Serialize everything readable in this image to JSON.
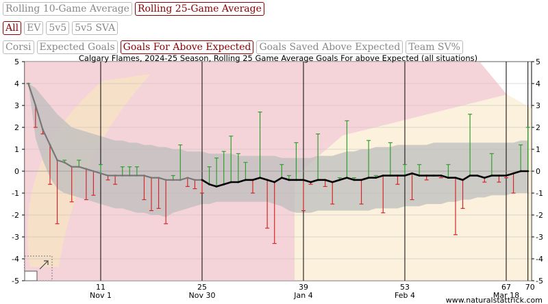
{
  "controls": {
    "window": [
      "Rolling 10-Game Average",
      "Rolling 25-Game Average"
    ],
    "window_active": 1,
    "situation": [
      "All",
      "EV",
      "5v5",
      "5v5 SVA"
    ],
    "situation_active": 0,
    "metric": [
      "Corsi",
      "Expected Goals",
      "Goals For Above Expected",
      "Goals Saved Above Expected",
      "Team SV%"
    ],
    "metric_active": 2
  },
  "watermark": "www.naturalstattrick.com",
  "colors": {
    "accent": "#8b0000",
    "positive": "#2ca02c",
    "negative": "#d62728",
    "line": "#000000",
    "band": "#bdbdbd",
    "logo_red": "#f2c6cc",
    "logo_yellow": "#f8e6c0"
  },
  "chart_data": {
    "type": "line",
    "title": "Calgary Flames, 2024-25 Season, Rolling 25 Game Average Goals For above Expected (all situations)",
    "xlabel": "",
    "ylabel": "",
    "xlim": [
      0.5,
      70.5
    ],
    "ylim": [
      -5,
      5
    ],
    "y_ticks": [
      -5,
      -4,
      -3,
      -2,
      -1,
      0,
      1,
      2,
      3,
      4,
      5
    ],
    "x_ticks": [
      {
        "game": 11,
        "date": "Nov 1"
      },
      {
        "game": 25,
        "date": "Nov 30"
      },
      {
        "game": 39,
        "date": "Jan 4"
      },
      {
        "game": 53,
        "date": "Feb 4"
      },
      {
        "game": 67,
        "date": "Mar 18"
      },
      {
        "game": 70,
        "date": ""
      }
    ],
    "grid": true,
    "games": [
      1,
      2,
      3,
      4,
      5,
      6,
      7,
      8,
      9,
      10,
      11,
      12,
      13,
      14,
      15,
      16,
      17,
      18,
      19,
      20,
      21,
      22,
      23,
      24,
      25,
      26,
      27,
      28,
      29,
      30,
      31,
      32,
      33,
      34,
      35,
      36,
      37,
      38,
      39,
      40,
      41,
      42,
      43,
      44,
      45,
      46,
      47,
      48,
      49,
      50,
      51,
      52,
      53,
      54,
      55,
      56,
      57,
      58,
      59,
      60,
      61,
      62,
      63,
      64,
      65,
      66,
      67,
      68,
      69,
      70
    ],
    "game_values": [
      4.0,
      2.0,
      1.7,
      -0.6,
      -2.4,
      0.5,
      -1.4,
      0.5,
      -1.3,
      -1.1,
      0.3,
      -0.4,
      -0.6,
      0.2,
      0.2,
      0.2,
      -1.3,
      -1.8,
      -1.7,
      -2.4,
      -0.2,
      1.2,
      -0.7,
      -0.8,
      -1.0,
      0.2,
      0.6,
      0.9,
      1.6,
      0.8,
      0.4,
      -1.0,
      2.7,
      -2.6,
      -3.3,
      0.3,
      -0.2,
      1.3,
      -1.8,
      -0.6,
      1.7,
      -0.7,
      -1.5,
      -0.3,
      2.3,
      -0.3,
      -1.5,
      1.4,
      -0.2,
      -1.9,
      1.3,
      -0.6,
      0.3,
      -1.3,
      0.3,
      -0.4,
      -0.2,
      -0.3,
      0.3,
      -2.9,
      -1.7,
      2.6,
      -0.2,
      -0.5,
      0.8,
      -0.5,
      -0.3,
      -1.0,
      1.2,
      2.0
    ],
    "series": [
      {
        "values": [
          4.0,
          3.0,
          1.9,
          1.2,
          0.5,
          0.4,
          0.2,
          0.2,
          0.1,
          0.0,
          -0.1,
          -0.2,
          -0.2,
          -0.2,
          -0.2,
          -0.2,
          -0.2,
          -0.3,
          -0.3,
          -0.4,
          -0.4,
          -0.4,
          -0.3,
          -0.4,
          -0.4,
          -0.6,
          -0.7,
          -0.6,
          -0.5,
          -0.5,
          -0.4,
          -0.4,
          -0.3,
          -0.4,
          -0.5,
          -0.3,
          -0.4,
          -0.4,
          -0.4,
          -0.5,
          -0.4,
          -0.4,
          -0.5,
          -0.4,
          -0.3,
          -0.4,
          -0.4,
          -0.3,
          -0.3,
          -0.2,
          -0.2,
          -0.2,
          -0.2,
          -0.1,
          -0.2,
          -0.2,
          -0.2,
          -0.2,
          -0.3,
          -0.3,
          -0.4,
          -0.2,
          -0.2,
          -0.3,
          -0.2,
          -0.2,
          -0.2,
          -0.1,
          0.0,
          0.0
        ]
      }
    ],
    "band": {
      "upper": [
        4.0,
        3.8,
        3.4,
        3.0,
        2.6,
        2.3,
        2.0,
        1.9,
        1.8,
        1.7,
        1.6,
        1.5,
        1.4,
        1.4,
        1.3,
        1.3,
        1.2,
        1.2,
        1.1,
        1.1,
        1.0,
        1.0,
        0.9,
        0.9,
        0.9,
        0.8,
        0.8,
        0.8,
        0.8,
        0.7,
        0.7,
        0.7,
        0.7,
        0.7,
        0.7,
        0.6,
        0.6,
        0.6,
        0.6,
        0.6,
        0.7,
        0.7,
        0.7,
        0.8,
        0.9,
        0.9,
        1.0,
        1.0,
        1.1,
        1.1,
        1.1,
        1.2,
        1.2,
        1.2,
        1.2,
        1.2,
        1.3,
        1.3,
        1.3,
        1.3,
        1.3,
        1.3,
        1.3,
        1.3,
        1.3,
        1.3,
        1.3,
        1.3,
        1.4,
        1.4
      ],
      "lower": [
        4.0,
        1.5,
        0.5,
        -0.3,
        -0.8,
        -1.0,
        -1.1,
        -1.2,
        -1.3,
        -1.4,
        -1.5,
        -1.6,
        -1.7,
        -1.7,
        -1.8,
        -1.9,
        -1.9,
        -2.0,
        -2.0,
        -2.1,
        -1.9,
        -1.8,
        -1.7,
        -1.6,
        -1.5,
        -1.5,
        -1.4,
        -1.4,
        -1.4,
        -1.4,
        -1.4,
        -1.4,
        -1.4,
        -1.4,
        -1.5,
        -1.6,
        -1.8,
        -1.9,
        -1.9,
        -1.9,
        -1.8,
        -1.8,
        -1.8,
        -1.8,
        -1.8,
        -1.8,
        -1.8,
        -1.8,
        -1.7,
        -1.7,
        -1.7,
        -1.7,
        -1.6,
        -1.6,
        -1.6,
        -1.5,
        -1.5,
        -1.5,
        -1.4,
        -1.4,
        -1.3,
        -1.3,
        -1.2,
        -1.2,
        -1.1,
        -1.1,
        -1.1,
        -1.0,
        -1.0,
        -1.0
      ]
    }
  }
}
